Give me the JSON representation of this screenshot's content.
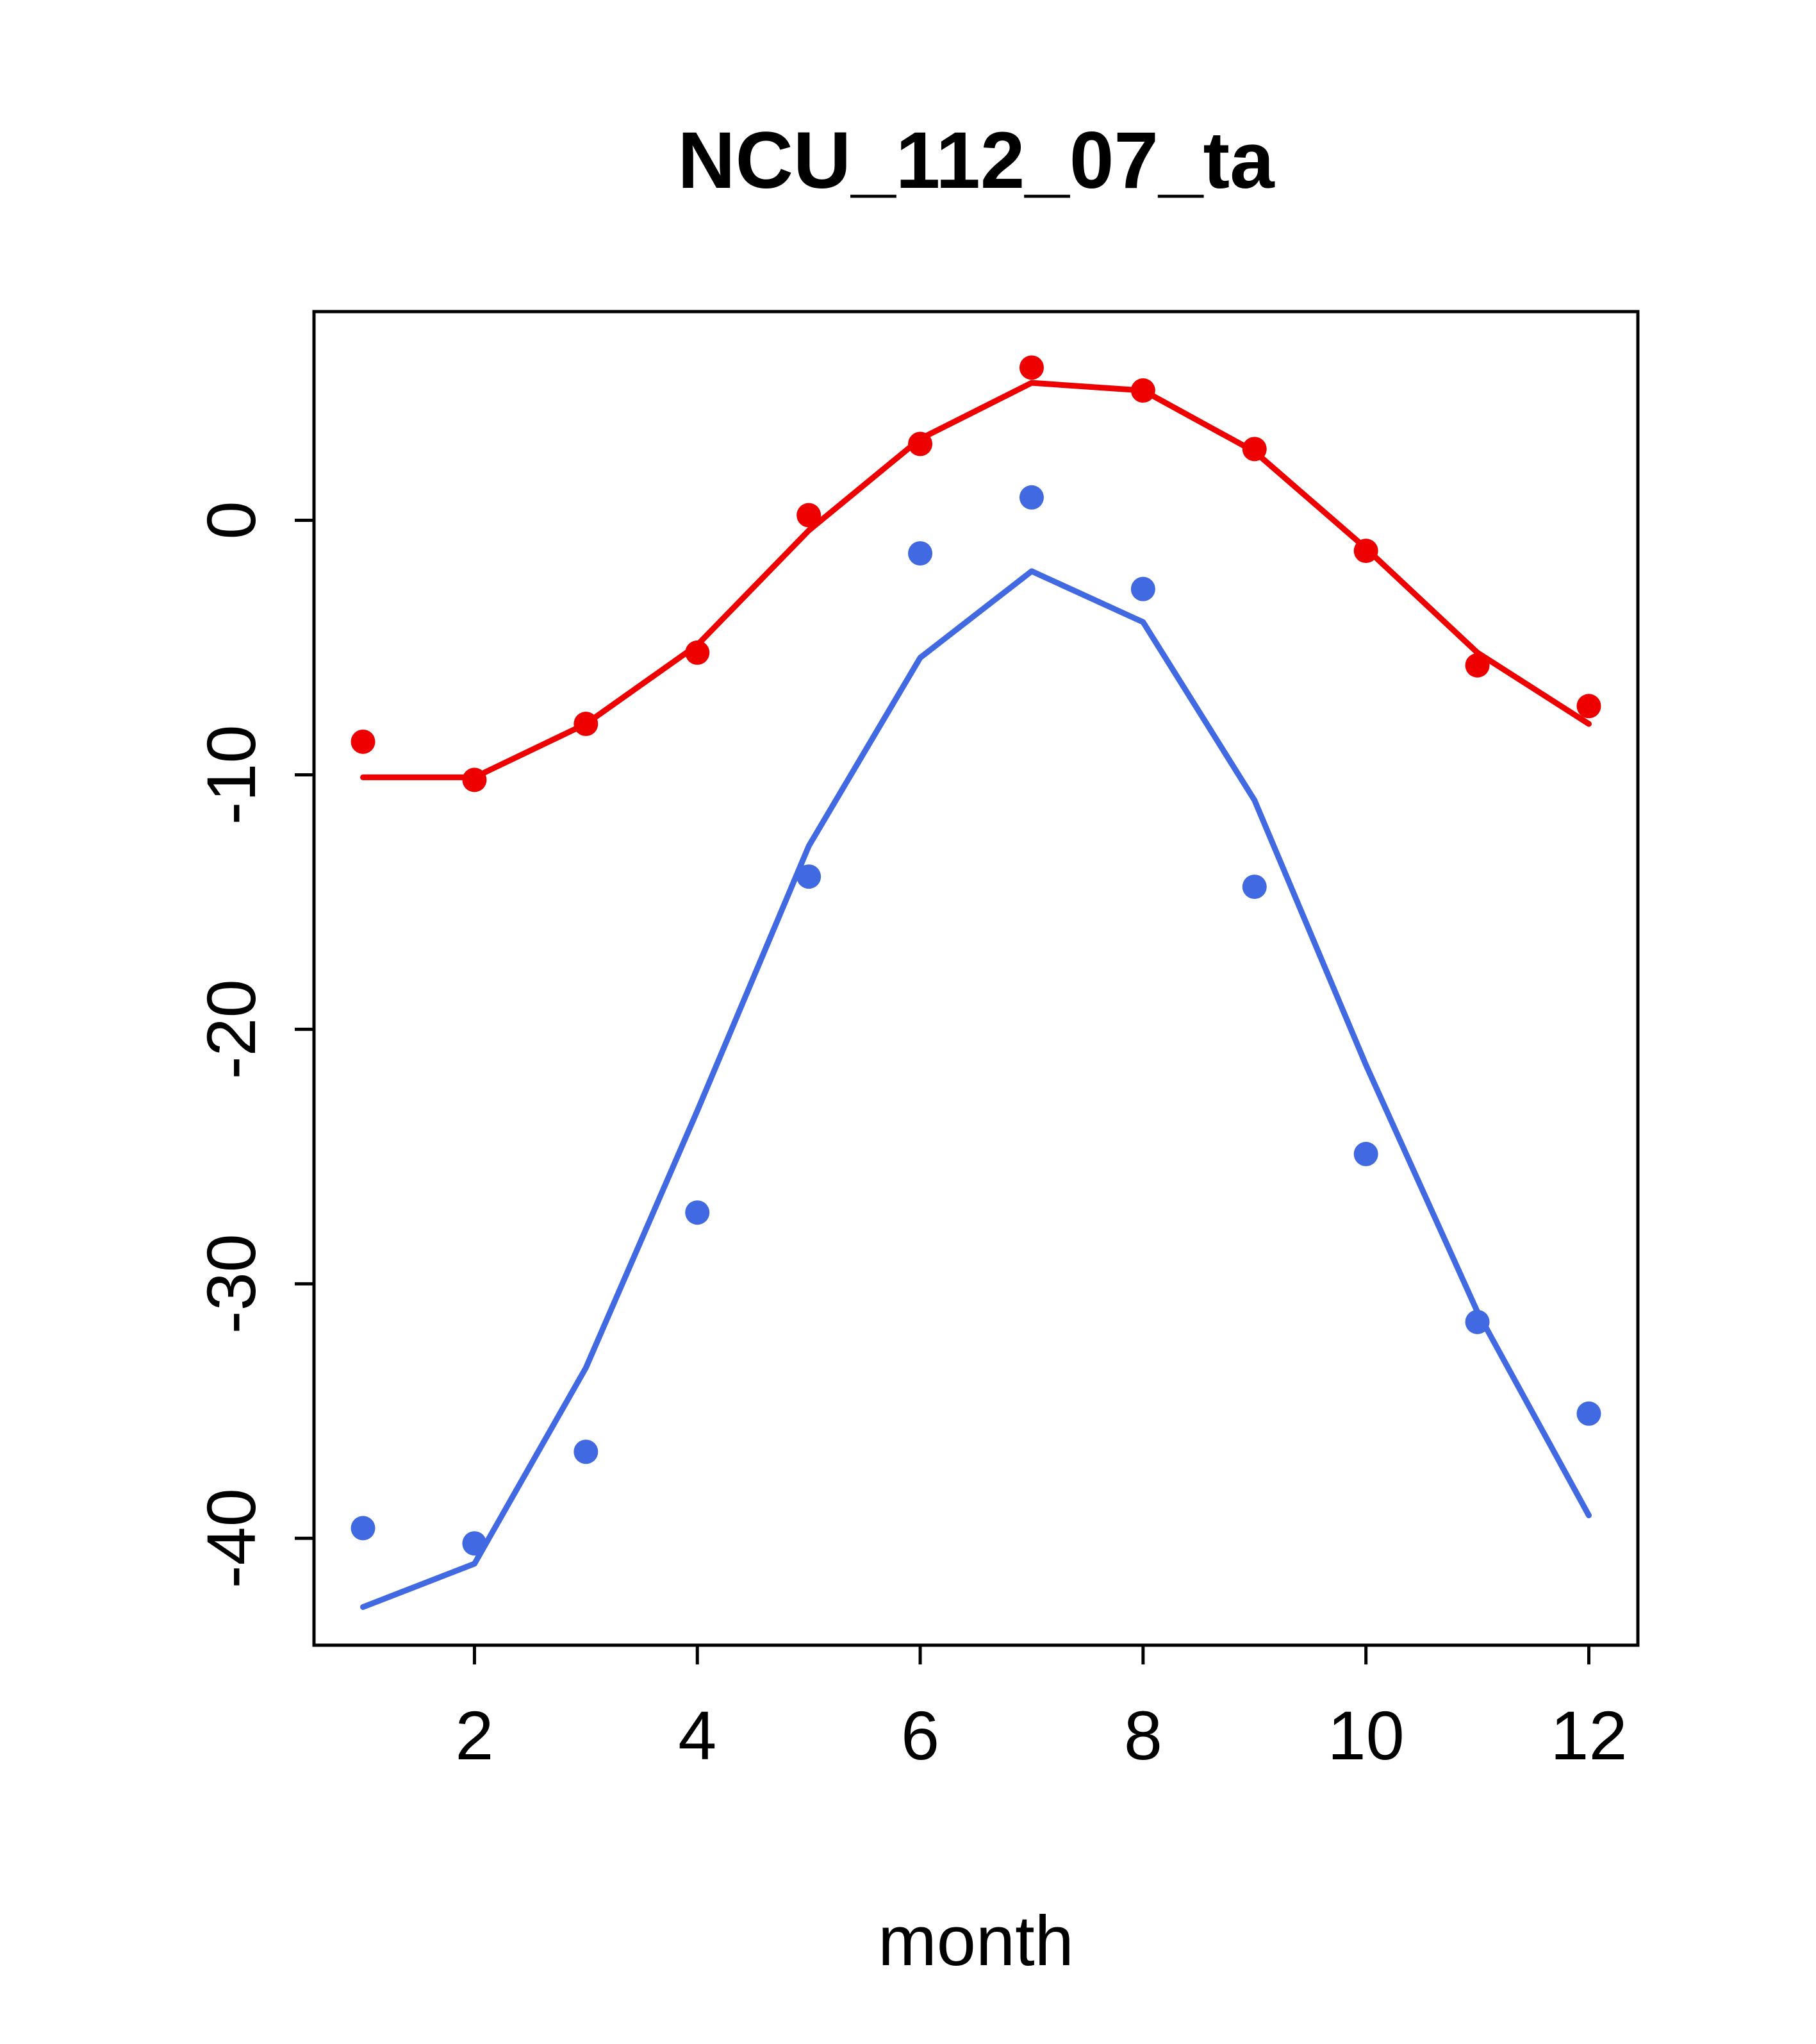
{
  "chart_data": {
    "type": "line",
    "title": "NCU_112_07_ta",
    "xlabel": "month",
    "ylabel": "",
    "grid": false,
    "legend": "none",
    "x": [
      1,
      2,
      3,
      4,
      5,
      6,
      7,
      8,
      9,
      10,
      11,
      12
    ],
    "x_ticks": [
      2,
      4,
      6,
      8,
      10,
      12
    ],
    "y_ticks": [
      0,
      -10,
      -20,
      -30,
      -40
    ],
    "xlim": [
      0.56,
      12.44
    ],
    "ylim": [
      -44.2,
      8.2
    ],
    "colors": {
      "red_series": "#ee0000",
      "blue_series": "#4169e1",
      "axis": "#000000",
      "background": "#ffffff"
    },
    "series": [
      {
        "name": "red-points",
        "kind": "points",
        "color": "#ee0000",
        "values": [
          -8.7,
          -10.2,
          -8.0,
          -5.2,
          0.2,
          3.0,
          6.0,
          5.1,
          2.8,
          -1.2,
          -5.7,
          -7.3
        ]
      },
      {
        "name": "red-line",
        "kind": "line",
        "color": "#ee0000",
        "values": [
          -10.1,
          -10.1,
          -8.0,
          -4.9,
          -0.4,
          3.2,
          5.4,
          5.1,
          2.7,
          -1.1,
          -5.2,
          -8.0
        ]
      },
      {
        "name": "blue-points",
        "kind": "points",
        "color": "#4169e1",
        "values": [
          -39.6,
          -40.2,
          -36.6,
          -27.2,
          -14.0,
          -1.3,
          0.9,
          -2.7,
          -14.4,
          -24.9,
          -31.5,
          -35.1
        ]
      },
      {
        "name": "blue-line",
        "kind": "line",
        "color": "#4169e1",
        "values": [
          -42.7,
          -41.0,
          -33.3,
          -23.2,
          -12.8,
          -5.4,
          -2.0,
          -4.0,
          -11.0,
          -21.4,
          -31.1,
          -39.1
        ]
      }
    ]
  }
}
